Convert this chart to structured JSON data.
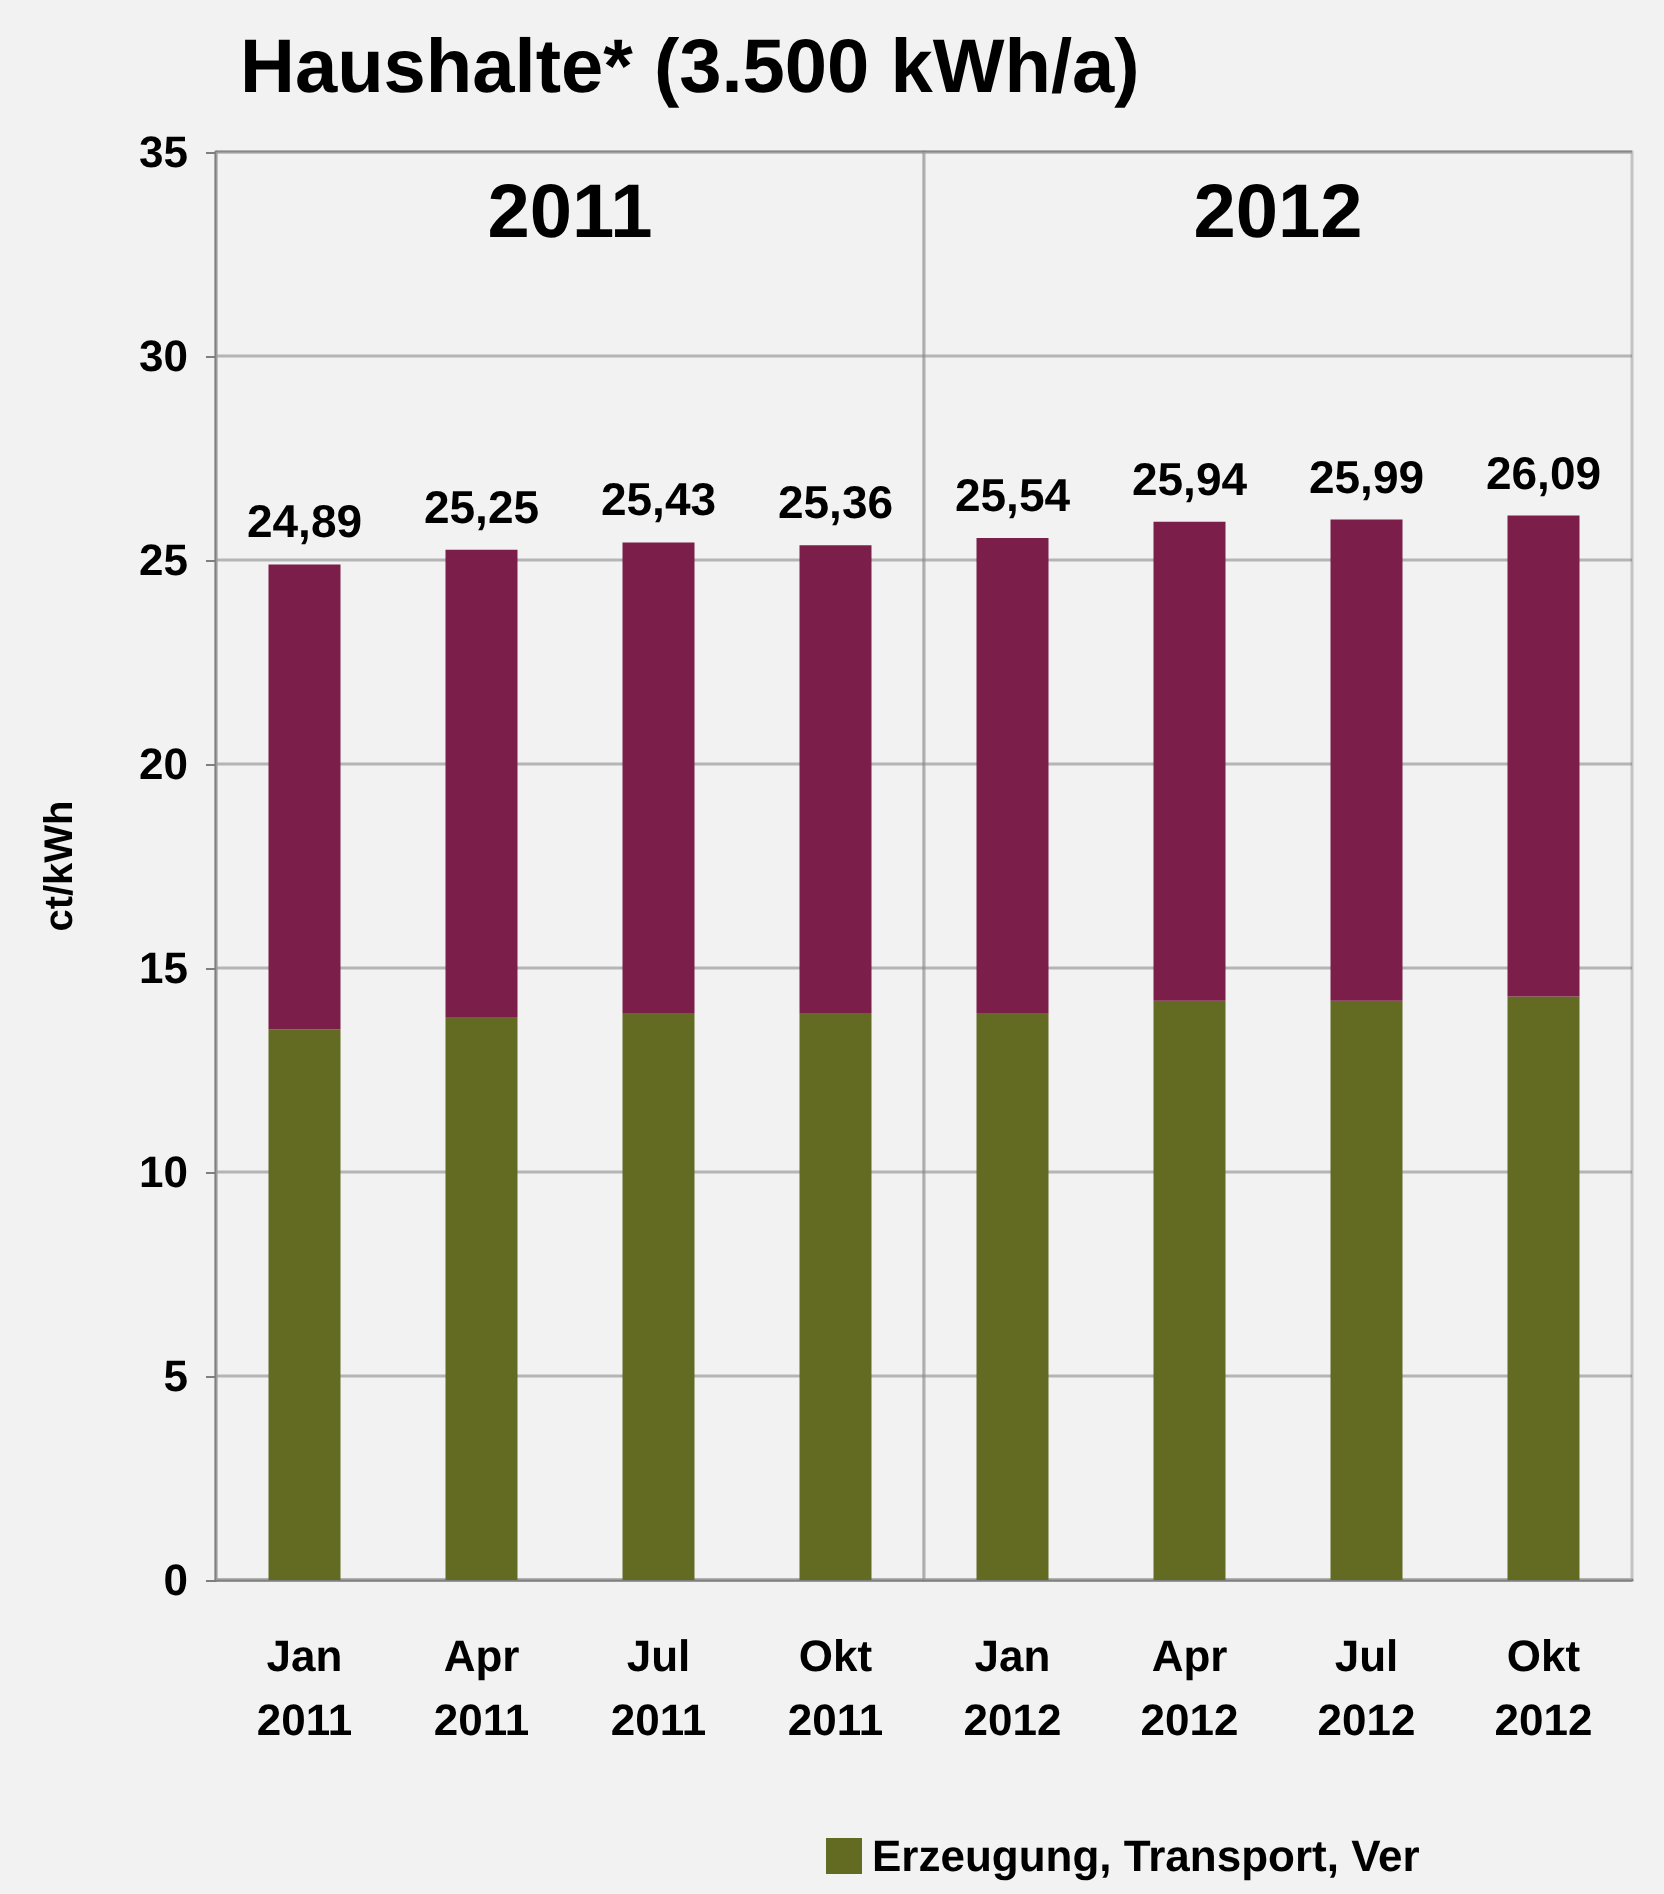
{
  "chart_data": {
    "type": "bar",
    "title": "Haushalte* (3.500 kWh/a)",
    "ylabel": "ct/kWh",
    "categories": [
      "Jan\n2011",
      "Apr\n2011",
      "Jul\n2011",
      "Okt\n2011",
      "Jan\n2012",
      "Apr\n2012",
      "Jul\n2012",
      "Okt\n2012"
    ],
    "series": [
      {
        "name": "Erzeugung, Transport, Ver",
        "color": "#636b22",
        "values": [
          13.5,
          13.8,
          13.9,
          13.9,
          13.9,
          14.2,
          14.2,
          14.3
        ]
      },
      {
        "color": "#7b1e4a",
        "values": [
          11.39,
          11.45,
          11.53,
          11.46,
          11.64,
          11.74,
          11.79,
          11.79
        ]
      }
    ],
    "stacked": true,
    "totals": [
      "24,89",
      "25,25",
      "25,43",
      "25,36",
      "25,54",
      "25,94",
      "25,99",
      "26,09"
    ],
    "ylim": [
      0,
      35
    ],
    "yticks": [
      0,
      5,
      10,
      15,
      20,
      25,
      30,
      35
    ],
    "grid": "y",
    "legend": "bottom",
    "bands": [
      {
        "axis": "x",
        "from": "Jan\n2011",
        "to": "Okt\n2011",
        "label": "2011",
        "color": "#f2f2f2"
      },
      {
        "axis": "x",
        "from": "Jan\n2012",
        "to": "Okt\n2012",
        "label": "2012",
        "color": "#f2f2f2"
      }
    ]
  }
}
